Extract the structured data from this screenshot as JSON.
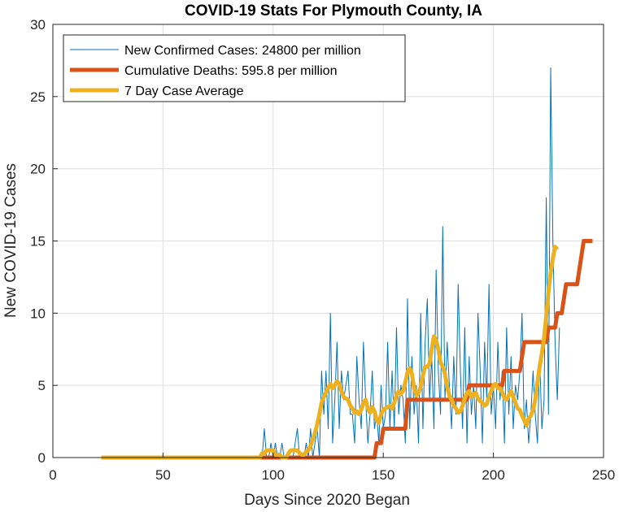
{
  "chart_data": {
    "type": "line",
    "title": "COVID-19 Stats For Plymouth County, IA",
    "xlabel": "Days Since 2020 Began",
    "ylabel": "New COVID-19 Cases",
    "xlim": [
      0,
      250
    ],
    "ylim": [
      0,
      30
    ],
    "xticks": [
      0,
      50,
      100,
      150,
      200,
      250
    ],
    "yticks": [
      0,
      5,
      10,
      15,
      20,
      25,
      30
    ],
    "grid": true,
    "legend_position": "top-left",
    "series": [
      {
        "name": "New Confirmed Cases: 24800 per million",
        "color": "#0072BD",
        "x_start": 22,
        "values": [
          0,
          0,
          0,
          0,
          0,
          0,
          0,
          0,
          0,
          0,
          0,
          0,
          0,
          0,
          0,
          0,
          0,
          0,
          0,
          0,
          0,
          0,
          0,
          0,
          0,
          0,
          0,
          0,
          0,
          0,
          0,
          0,
          0,
          0,
          0,
          0,
          0,
          0,
          0,
          0,
          0,
          0,
          0,
          0,
          0,
          0,
          0,
          0,
          0,
          0,
          0,
          0,
          0,
          0,
          0,
          0,
          0,
          0,
          0,
          0,
          0,
          0,
          0,
          0,
          0,
          0,
          0,
          0,
          0,
          0,
          0,
          0,
          0,
          0,
          2,
          0,
          0,
          1,
          0,
          1,
          0,
          0,
          1,
          0,
          0,
          0,
          0,
          0,
          1,
          2,
          0,
          0,
          0,
          1,
          0,
          2,
          0,
          1,
          2,
          0,
          6,
          3,
          6,
          2,
          10,
          1,
          4,
          8,
          2,
          6,
          4,
          5,
          6,
          3,
          3,
          1,
          7,
          4,
          2,
          8,
          4,
          1,
          3,
          6,
          2,
          3,
          1,
          5,
          2,
          3,
          8,
          2,
          6,
          2,
          9,
          3,
          5,
          4,
          1,
          11,
          2,
          7,
          3,
          5,
          1,
          10,
          2,
          8,
          11,
          4,
          7,
          2,
          13,
          6,
          3,
          16,
          4,
          8,
          5,
          2,
          7,
          3,
          12,
          6,
          2,
          9,
          1,
          7,
          3,
          5,
          2,
          10,
          6,
          1,
          8,
          4,
          12,
          3,
          5,
          2,
          8,
          4,
          6,
          1,
          9,
          3,
          7,
          2,
          5,
          4,
          6,
          10,
          2,
          4,
          1,
          3,
          6,
          3,
          1,
          7,
          2,
          4,
          18,
          3,
          27,
          15,
          8,
          4,
          9
        ],
        "line_width": 1
      },
      {
        "name": "Cumulative Deaths: 595.8 per million",
        "color": "#D95319",
        "x_start": 22,
        "values": [
          0,
          0,
          0,
          0,
          0,
          0,
          0,
          0,
          0,
          0,
          0,
          0,
          0,
          0,
          0,
          0,
          0,
          0,
          0,
          0,
          0,
          0,
          0,
          0,
          0,
          0,
          0,
          0,
          0,
          0,
          0,
          0,
          0,
          0,
          0,
          0,
          0,
          0,
          0,
          0,
          0,
          0,
          0,
          0,
          0,
          0,
          0,
          0,
          0,
          0,
          0,
          0,
          0,
          0,
          0,
          0,
          0,
          0,
          0,
          0,
          0,
          0,
          0,
          0,
          0,
          0,
          0,
          0,
          0,
          0,
          0,
          0,
          0,
          0,
          0,
          0,
          0,
          0,
          0,
          0,
          0,
          0,
          0,
          0,
          0,
          0,
          0,
          0,
          0,
          0,
          0,
          0,
          0,
          0,
          0,
          0,
          0,
          0,
          0,
          0,
          0,
          0,
          0,
          0,
          0,
          0,
          0,
          0,
          0,
          0,
          0,
          0,
          0,
          0,
          0,
          0,
          0,
          0,
          0,
          0,
          0,
          0,
          0,
          0,
          0,
          1,
          1,
          1,
          2,
          2,
          2,
          2,
          2,
          2,
          2,
          2,
          2,
          2,
          2,
          4,
          4,
          4,
          4,
          4,
          4,
          4,
          4,
          4,
          4,
          4,
          4,
          4,
          4,
          4,
          4,
          4,
          4,
          4,
          4,
          4,
          4,
          4,
          4,
          4,
          4,
          4,
          4,
          5,
          5,
          5,
          5,
          5,
          5,
          5,
          5,
          5,
          5,
          5,
          5,
          5,
          5,
          5,
          5,
          6,
          6,
          6,
          6,
          6,
          6,
          6,
          6,
          7,
          8,
          8,
          8,
          8,
          8,
          8,
          8,
          8,
          8,
          8,
          8,
          9,
          9,
          9,
          9,
          10,
          10,
          10,
          11,
          12,
          12,
          12,
          12,
          12,
          12,
          13,
          14,
          15,
          15,
          15,
          15,
          15
        ],
        "line_width": 5
      },
      {
        "name": "7 Day Case Average",
        "color": "#EDB120",
        "x_start": 22,
        "values": [
          0,
          0,
          0,
          0,
          0,
          0,
          0,
          0,
          0,
          0,
          0,
          0,
          0,
          0,
          0,
          0,
          0,
          0,
          0,
          0,
          0,
          0,
          0,
          0,
          0,
          0,
          0,
          0,
          0,
          0,
          0,
          0,
          0,
          0,
          0,
          0,
          0,
          0,
          0,
          0,
          0,
          0,
          0,
          0,
          0,
          0,
          0,
          0,
          0,
          0,
          0,
          0,
          0,
          0,
          0,
          0,
          0,
          0,
          0,
          0,
          0,
          0,
          0,
          0,
          0,
          0,
          0,
          0,
          0,
          0,
          0,
          0,
          0,
          0.3,
          0.3,
          0.5,
          0.5,
          0.5,
          0.5,
          0.2,
          0.2,
          0.2,
          0,
          0,
          0,
          0.3,
          0.5,
          0.5,
          0.5,
          0.5,
          0.3,
          0.2,
          0.2,
          0.4,
          0.5,
          0.8,
          1.3,
          1.7,
          2.3,
          3,
          3.8,
          4.2,
          4.5,
          4.8,
          5.1,
          4.8,
          5,
          5.3,
          5.1,
          4.6,
          4.2,
          4.1,
          4,
          3.6,
          3.4,
          3.1,
          3.2,
          3,
          3.3,
          3.8,
          4,
          3.4,
          3.1,
          3.5,
          3.2,
          2.6,
          2.4,
          3,
          3.3,
          3.4,
          3.5,
          3.6,
          3.4,
          3.8,
          4.3,
          4.6,
          4.4,
          4.6,
          5.2,
          5.9,
          6.2,
          5.8,
          4.8,
          4.3,
          4.5,
          4.9,
          5.7,
          6.3,
          6.3,
          6.5,
          7.5,
          8.4,
          8.1,
          7.5,
          6.6,
          6.3,
          5.8,
          4.9,
          4.3,
          4,
          3.6,
          3.4,
          3.1,
          3.2,
          3.6,
          4.1,
          4.5,
          4.6,
          4.2,
          4.4,
          4.5,
          4.1,
          3.9,
          3.8,
          3.6,
          3.7,
          4.2,
          4.6,
          5,
          5.1,
          4.8,
          4.8,
          4.5,
          4.1,
          4,
          4.3,
          4.6,
          4.2,
          3.8,
          3.4,
          3.3,
          2.9,
          2.6,
          2.2,
          2.7,
          2.9,
          3.3,
          4,
          5.2,
          6.3,
          7.2,
          8.3,
          9.8,
          11.5,
          12.8,
          13.8,
          14.6,
          14.4
        ],
        "line_width": 5
      }
    ]
  }
}
